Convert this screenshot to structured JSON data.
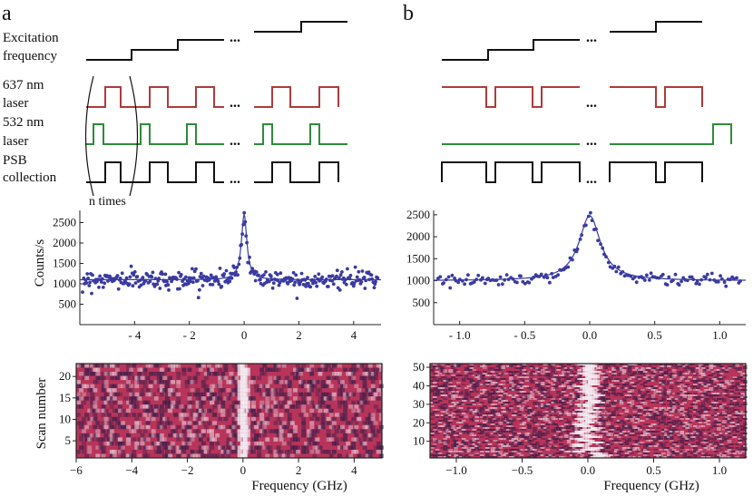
{
  "panels": [
    {
      "letter": "a",
      "labels": {
        "excitation": [
          "Excitation",
          "frequency"
        ],
        "red_laser": [
          "637 nm",
          "laser"
        ],
        "green_laser": [
          "532 nm",
          "laser"
        ],
        "psb": [
          "PSB",
          "collection"
        ],
        "repeat": "n times",
        "ellipsis": "..."
      }
    },
    {
      "letter": "b",
      "labels": {
        "ellipsis": "..."
      }
    }
  ],
  "colors": {
    "red_laser": "#b03a3a",
    "green_laser": "#2e8b3a",
    "collection": "#111111",
    "data_points": "#3a3aa0",
    "fit_line": "#3a3aa0",
    "heatmap_base": "#b8345a",
    "heatmap_dark": "#3a1e4a",
    "heatmap_light": "#e6c8d6"
  },
  "chart_data": [
    {
      "type": "scatter",
      "panel": "a",
      "ylabel": "Counts/s",
      "xlabel": "",
      "xlim": [
        -6,
        5
      ],
      "ylim": [
        0,
        2800
      ],
      "xticks": [
        -4,
        -2,
        0,
        2,
        4
      ],
      "xtick_labels": [
        "- 4",
        "- 2",
        "0",
        "2",
        "4"
      ],
      "yticks": [
        500,
        1000,
        1500,
        2000,
        2500
      ],
      "ytick_labels": [
        "500",
        "1000",
        "1500",
        "2000",
        "2500"
      ],
      "series": [
        {
          "kind": "points",
          "model": "lorentzian",
          "baseline": 1100,
          "amplitude": 1600,
          "center": 0,
          "hwhm": 0.11,
          "noise": 110,
          "x_range": [
            -5.9,
            4.9
          ],
          "count": 330
        },
        {
          "kind": "fit",
          "model": "lorentzian",
          "baseline": 1100,
          "amplitude": 1600,
          "center": 0,
          "hwhm": 0.12
        }
      ]
    },
    {
      "type": "scatter",
      "panel": "b",
      "ylabel": "",
      "xlabel": "",
      "xlim": [
        -1.2,
        1.2
      ],
      "ylim": [
        0,
        2600
      ],
      "xticks": [
        -1.0,
        -0.5,
        0.0,
        0.5,
        1.0
      ],
      "xtick_labels": [
        "- 1.0",
        "- 0.5",
        "0.0",
        "0.5",
        "1.0"
      ],
      "yticks": [
        500,
        1000,
        1500,
        2000,
        2500
      ],
      "ytick_labels": [
        "500",
        "1000",
        "1500",
        "2000",
        "2500"
      ],
      "series": [
        {
          "kind": "points",
          "model": "lorentzian",
          "baseline": 1000,
          "amplitude": 1500,
          "center": 0,
          "hwhm": 0.09,
          "noise": 65,
          "x_range": [
            -1.17,
            1.17
          ],
          "count": 150
        },
        {
          "kind": "fit",
          "model": "lorentzian",
          "baseline": 1000,
          "amplitude": 1480,
          "center": 0,
          "hwhm": 0.1
        }
      ]
    },
    {
      "type": "heatmap",
      "panel": "a",
      "ylabel": "Scan number",
      "xlabel": "Frequency (GHz)",
      "xlim": [
        -6,
        5
      ],
      "ylim": [
        1,
        23
      ],
      "xticks": [
        -6,
        -4,
        -2,
        0,
        2,
        4
      ],
      "xtick_labels": [
        "−6",
        "−4",
        "−2",
        "0",
        "2",
        "4"
      ],
      "yticks": [
        5,
        10,
        15,
        20
      ],
      "ytick_labels": [
        "5",
        "10",
        "15",
        "20"
      ],
      "resonance": {
        "center": 0,
        "width": 0.18,
        "drift": 0.02
      }
    },
    {
      "type": "heatmap",
      "panel": "b",
      "ylabel": "",
      "xlabel": "Frequency (GHz)",
      "xlim": [
        -1.2,
        1.2
      ],
      "ylim": [
        1,
        52
      ],
      "xticks": [
        -1.0,
        -0.5,
        0.0,
        0.5,
        1.0
      ],
      "xtick_labels": [
        "−1.0",
        "−0.5",
        "0.0",
        "0.5",
        "1.0"
      ],
      "yticks": [
        10,
        20,
        30,
        40,
        50
      ],
      "ytick_labels": [
        "10",
        "20",
        "30",
        "40",
        "50"
      ],
      "resonance": {
        "center": 0,
        "width": 0.06,
        "drift": 0.08
      }
    }
  ]
}
